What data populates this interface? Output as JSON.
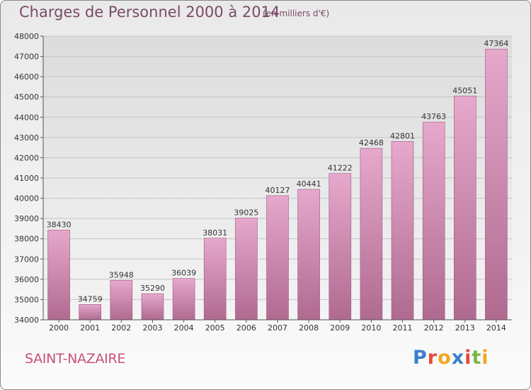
{
  "title": "Charges de Personnel 2000 à 2014",
  "subtitle": "(en milliers d'€)",
  "place": "SAINT-NAZAIRE",
  "logo": {
    "text": "Proxiti",
    "letters": [
      {
        "ch": "P",
        "color": "#3a7fd0"
      },
      {
        "ch": "r",
        "color": "#e8483c"
      },
      {
        "ch": "o",
        "color": "#f5a623"
      },
      {
        "ch": "x",
        "color": "#3a7fd0"
      },
      {
        "ch": "i",
        "color": "#e8483c"
      },
      {
        "ch": "t",
        "color": "#7ab648"
      },
      {
        "ch": "i",
        "color": "#f5a623"
      }
    ]
  },
  "colors": {
    "bar_top": "#e6a8cc",
    "bar_bottom": "#b06a90",
    "bar_edge": "#9b5a7e",
    "accent": "#c8507e"
  },
  "chart_data": {
    "type": "bar",
    "categories": [
      "2000",
      "2001",
      "2002",
      "2003",
      "2004",
      "2005",
      "2006",
      "2007",
      "2008",
      "2009",
      "2010",
      "2011",
      "2012",
      "2013",
      "2014"
    ],
    "values": [
      38430,
      34759,
      35948,
      35290,
      36039,
      38031,
      39025,
      40127,
      40441,
      41222,
      42468,
      42801,
      43763,
      45051,
      47364
    ],
    "ylim": [
      34000,
      48000
    ],
    "yticks": [
      34000,
      35000,
      36000,
      37000,
      38000,
      39000,
      40000,
      41000,
      42000,
      43000,
      44000,
      45000,
      46000,
      47000,
      48000
    ],
    "grid": true
  }
}
